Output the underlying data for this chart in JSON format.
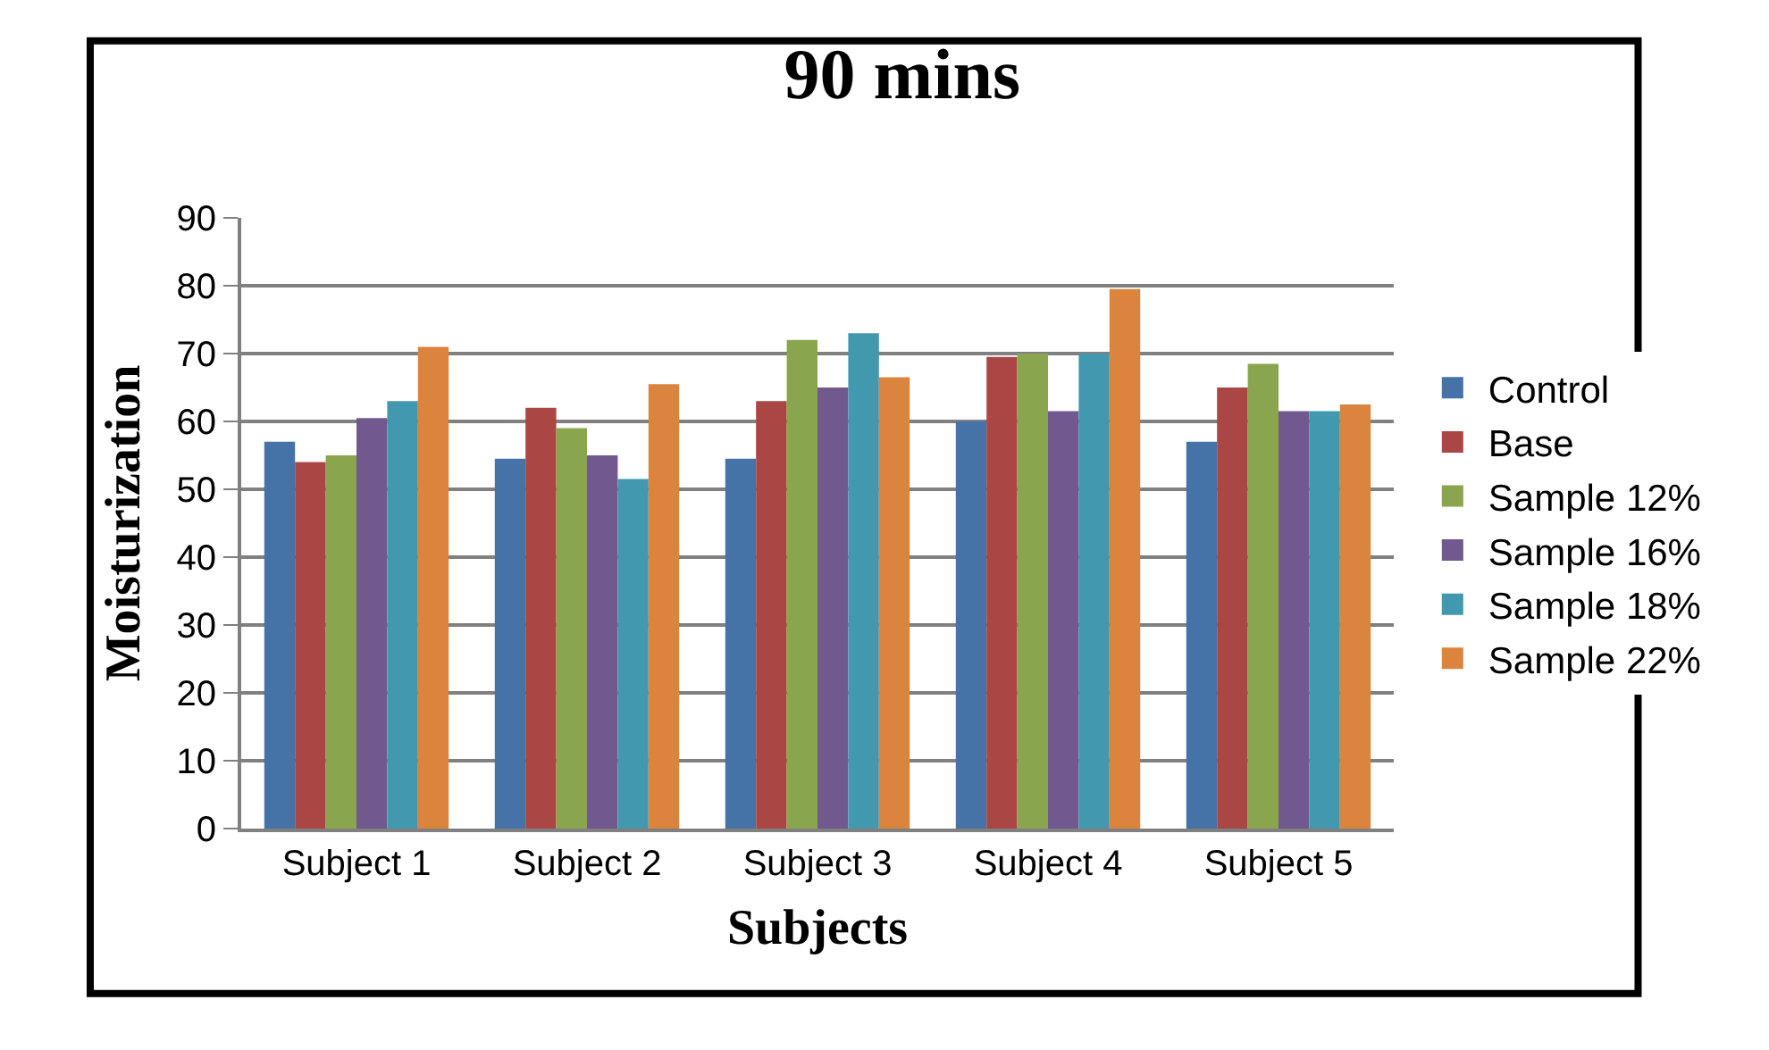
{
  "chart_data": {
    "type": "bar",
    "title": "90 mins",
    "xlabel": "Subjects",
    "ylabel": "Moisturization",
    "categories": [
      "Subject 1",
      "Subject 2",
      "Subject 3",
      "Subject 4",
      "Subject 5"
    ],
    "series": [
      {
        "name": "Control",
        "color": "#4572a7",
        "values": [
          57,
          54.5,
          54.5,
          60,
          57
        ]
      },
      {
        "name": "Base",
        "color": "#aa4643",
        "values": [
          54,
          62,
          63,
          69.5,
          65
        ]
      },
      {
        "name": "Sample 12%",
        "color": "#89a54e",
        "values": [
          55,
          59,
          72,
          70,
          68.5
        ]
      },
      {
        "name": "Sample 16%",
        "color": "#71588f",
        "values": [
          60.5,
          55,
          65,
          61.5,
          61.5
        ]
      },
      {
        "name": "Sample 18%",
        "color": "#4198af",
        "values": [
          63,
          51.5,
          73,
          70,
          61.5
        ]
      },
      {
        "name": "Sample 22%",
        "color": "#db843d",
        "values": [
          71,
          65.5,
          66.5,
          79.5,
          62.5
        ]
      }
    ],
    "ylim": [
      0,
      90
    ],
    "yticks": [
      0,
      10,
      20,
      30,
      40,
      50,
      60,
      70,
      80,
      90
    ],
    "grid": "y",
    "legend": "right"
  }
}
